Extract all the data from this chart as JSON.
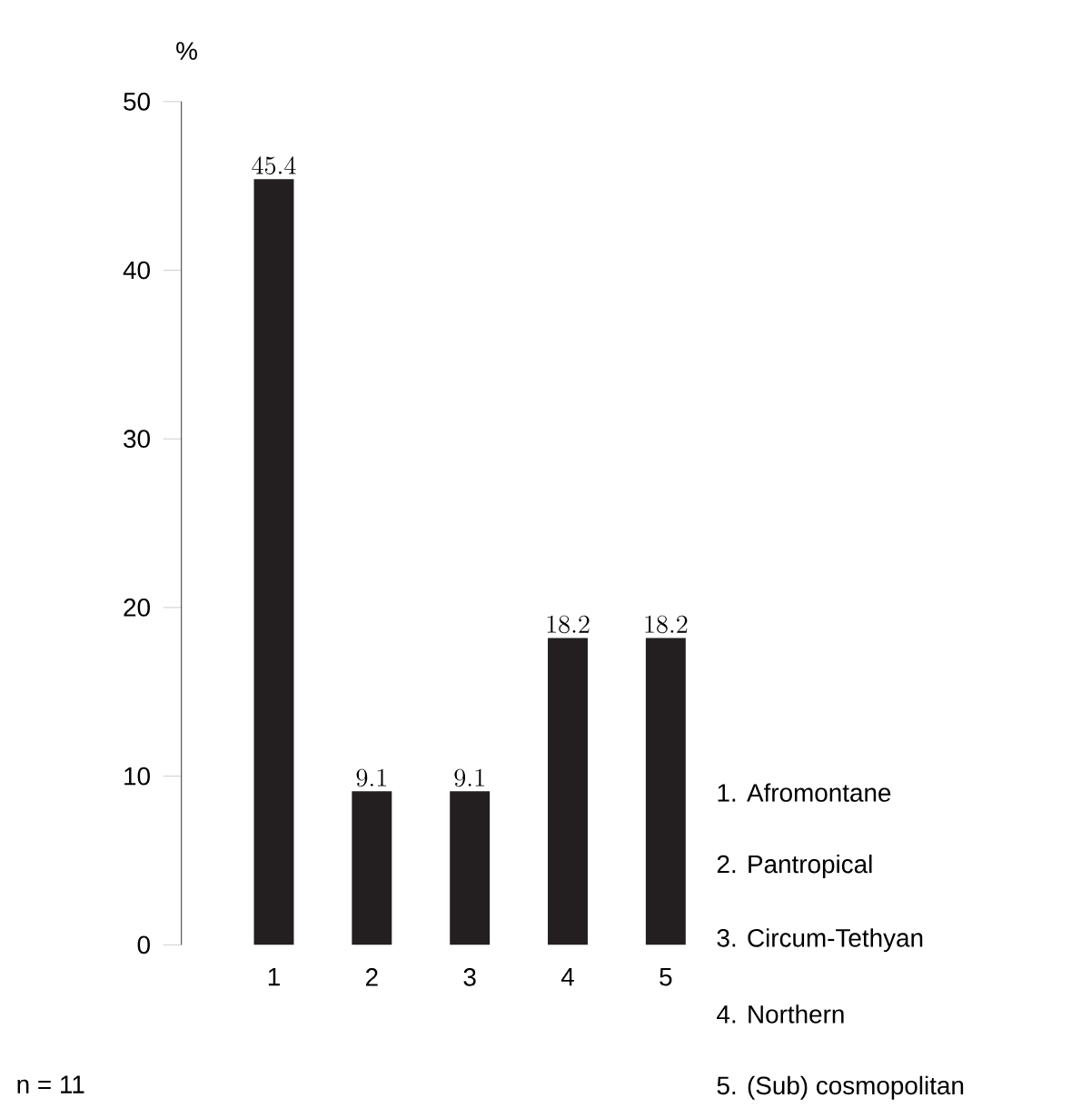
{
  "chart_data": {
    "type": "bar",
    "ylabel": "%",
    "categories": [
      "1",
      "2",
      "3",
      "4",
      "5"
    ],
    "values": [
      45.4,
      9.1,
      9.1,
      18.2,
      18.2
    ],
    "color": "#231f20",
    "ylim": [
      0,
      50
    ],
    "yticks": [
      0,
      10,
      20,
      30,
      40,
      50
    ],
    "data_labels": true,
    "annotations": [
      "1. Afromontane",
      "2. Pantropical",
      "3. Circum-Tethyan",
      "4. Northern",
      "5. (Sub) cosmopolitan",
      "n = 11"
    ]
  }
}
